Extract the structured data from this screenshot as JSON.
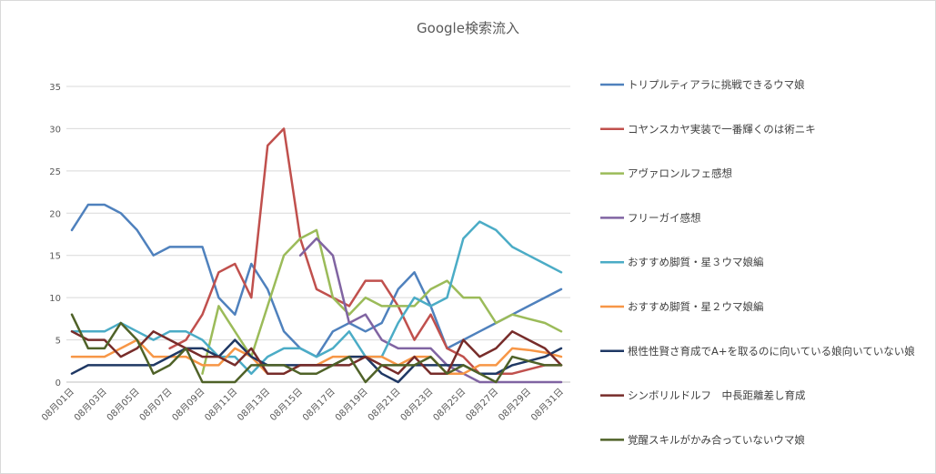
{
  "chart_data": {
    "type": "line",
    "title": "Google検索流入",
    "xlabel": "",
    "ylabel": "",
    "ylim": [
      0,
      35
    ],
    "yticks": [
      0,
      5,
      10,
      15,
      20,
      25,
      30,
      35
    ],
    "grid": true,
    "legend_position": "right",
    "x": [
      "08月01日",
      "08月02日",
      "08月03日",
      "08月04日",
      "08月05日",
      "08月06日",
      "08月07日",
      "08月08日",
      "08月09日",
      "08月10日",
      "08月11日",
      "08月12日",
      "08月13日",
      "08月14日",
      "08月15日",
      "08月16日",
      "08月17日",
      "08月18日",
      "08月19日",
      "08月20日",
      "08月21日",
      "08月22日",
      "08月23日",
      "08月24日",
      "08月25日",
      "08月26日",
      "08月27日",
      "08月28日",
      "08月29日",
      "08月30日",
      "08月31日"
    ],
    "x_tick_labels": [
      "08月01日",
      "08月03日",
      "08月05日",
      "08月07日",
      "08月09日",
      "08月11日",
      "08月13日",
      "08月15日",
      "08月17日",
      "08月19日",
      "08月21日",
      "08月23日",
      "08月25日",
      "08月27日",
      "08月29日",
      "08月31日"
    ],
    "series": [
      {
        "name": "トリプルティアラに挑戦できるウマ娘",
        "color": "#4f81bd",
        "values": [
          18,
          21,
          21,
          20,
          18,
          15,
          16,
          16,
          16,
          10,
          8,
          14,
          11,
          6,
          4,
          3,
          6,
          7,
          6,
          7,
          11,
          13,
          9,
          4,
          5,
          6,
          7,
          8,
          9,
          10,
          11
        ]
      },
      {
        "name": "コヤンスカヤ実装で一番輝くのは術ニキ",
        "color": "#c0504d",
        "values": [
          null,
          null,
          null,
          null,
          null,
          null,
          4,
          5,
          8,
          13,
          14,
          10,
          28,
          30,
          17,
          11,
          10,
          9,
          12,
          12,
          9,
          5,
          8,
          4,
          3,
          1,
          1,
          1,
          1.5,
          2,
          2
        ]
      },
      {
        "name": "アヴァロンルフェ感想",
        "color": "#9bbb59",
        "values": [
          null,
          null,
          null,
          null,
          null,
          null,
          null,
          null,
          1,
          9,
          6,
          3,
          9,
          15,
          17,
          18,
          10,
          8,
          10,
          9,
          9,
          9,
          11,
          12,
          10,
          10,
          7,
          8,
          7.5,
          7,
          6
        ]
      },
      {
        "name": "フリーガイ感想",
        "color": "#8064a2",
        "values": [
          null,
          null,
          null,
          null,
          null,
          null,
          null,
          null,
          null,
          null,
          null,
          null,
          null,
          null,
          15,
          17,
          15,
          7,
          8,
          5,
          4,
          4,
          4,
          2,
          1,
          0,
          0,
          0,
          0,
          0,
          0
        ]
      },
      {
        "name": "おすすめ脚質・星３ウマ娘編",
        "color": "#4bacc6",
        "values": [
          6,
          6,
          6,
          7,
          6,
          5,
          6,
          6,
          5,
          3,
          3,
          1,
          3,
          4,
          4,
          3,
          4,
          6,
          3,
          3,
          7,
          10,
          9,
          10,
          17,
          19,
          18,
          16,
          15,
          14,
          13
        ]
      },
      {
        "name": "おすすめ脚質・星２ウマ娘編",
        "color": "#f79646",
        "values": [
          3,
          3,
          3,
          4,
          5,
          3,
          3,
          3,
          2,
          2,
          4,
          3,
          1,
          1,
          2,
          2,
          3,
          3,
          3,
          3,
          2,
          3,
          3,
          1,
          1,
          2,
          2,
          4,
          3.8,
          3.5,
          3
        ]
      },
      {
        "name": "根性性賢さ育成でA+を取るのに向いている娘向いていない娘",
        "color": "#1f3864",
        "values": [
          1,
          2,
          2,
          2,
          2,
          2,
          3,
          4,
          4,
          3,
          5,
          3,
          2,
          2,
          2,
          2,
          2,
          3,
          3,
          1,
          0,
          2,
          2,
          2,
          2,
          1,
          1,
          2,
          2.5,
          3,
          4
        ]
      },
      {
        "name": "シンボリルドルフ　中長距離差し育成",
        "color": "#772c2a",
        "values": [
          6,
          5,
          5,
          3,
          4,
          6,
          5,
          4,
          3,
          3,
          2,
          4,
          1,
          1,
          2,
          2,
          2,
          2,
          3,
          2,
          1,
          3,
          1,
          1,
          5,
          3,
          4,
          6,
          5,
          4,
          2
        ]
      },
      {
        "name": "覚醒スキルがかみ合っていないウマ娘",
        "color": "#4f6228",
        "values": [
          8,
          4,
          4,
          7,
          5,
          1,
          2,
          4,
          0,
          0,
          0,
          2,
          2,
          2,
          1,
          1,
          2,
          3,
          0,
          2,
          2,
          2,
          3,
          1,
          2,
          1,
          0,
          3,
          2.5,
          2,
          2
        ]
      }
    ]
  }
}
